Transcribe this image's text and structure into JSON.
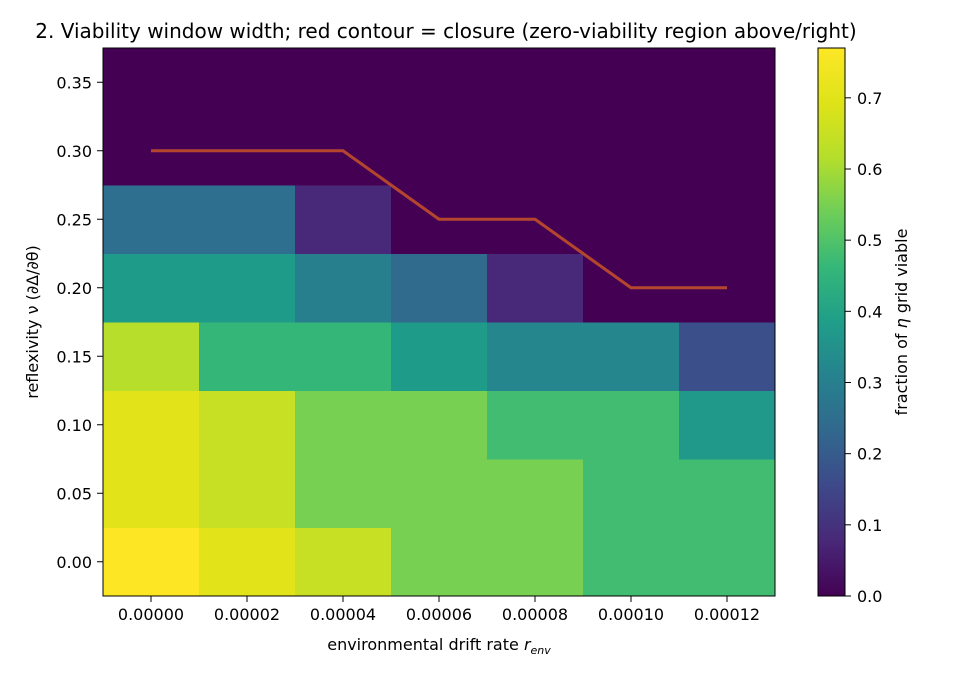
{
  "chart_data": {
    "type": "heatmap",
    "title": "2. Viability window width; red contour = closure (zero-viability region above/right)",
    "xlabel": "environmental drift rate r_env",
    "xlabel_main": "environmental drift rate ",
    "xlabel_var": "r",
    "xlabel_sub": "env",
    "ylabel": "reflexivity ν  (∂Δ/∂θ)",
    "colorbar_label": "fraction of η grid viable",
    "colorbar_label_pre": "fraction of ",
    "colorbar_label_var": "η",
    "colorbar_label_post": " grid viable",
    "colormap": "viridis",
    "vmin": 0.0,
    "vmax": 0.77,
    "x": [
      0.0,
      2e-05,
      4e-05,
      6e-05,
      8e-05,
      0.0001,
      0.00012
    ],
    "y": [
      0.0,
      0.05,
      0.1,
      0.15,
      0.2,
      0.25,
      0.3,
      0.35
    ],
    "xlim": [
      -1e-05,
      0.00013
    ],
    "ylim": [
      -0.025,
      0.375
    ],
    "x_ticks": [
      "0.00000",
      "0.00002",
      "0.00004",
      "0.00006",
      "0.00008",
      "0.00010",
      "0.00012"
    ],
    "y_ticks": [
      "0.00",
      "0.05",
      "0.10",
      "0.15",
      "0.20",
      "0.25",
      "0.30",
      "0.35"
    ],
    "colorbar_ticks": [
      "0.0",
      "0.1",
      "0.2",
      "0.3",
      "0.4",
      "0.5",
      "0.6",
      "0.7"
    ],
    "colorbar_tick_values": [
      0.0,
      0.1,
      0.2,
      0.3,
      0.4,
      0.5,
      0.6,
      0.7
    ],
    "values": [
      [
        0.77,
        0.7,
        0.65,
        0.55,
        0.55,
        0.48,
        0.48
      ],
      [
        0.7,
        0.65,
        0.55,
        0.55,
        0.55,
        0.48,
        0.48
      ],
      [
        0.7,
        0.65,
        0.55,
        0.55,
        0.48,
        0.48,
        0.37
      ],
      [
        0.62,
        0.46,
        0.46,
        0.38,
        0.32,
        0.32,
        0.17
      ],
      [
        0.38,
        0.38,
        0.3,
        0.24,
        0.08,
        0.0,
        0.0
      ],
      [
        0.25,
        0.25,
        0.08,
        0.0,
        0.0,
        0.0,
        0.0
      ],
      [
        0.0,
        0.0,
        0.0,
        0.0,
        0.0,
        0.0,
        0.0
      ],
      [
        0.0,
        0.0,
        0.0,
        0.0,
        0.0,
        0.0,
        0.0
      ]
    ],
    "contour": {
      "color": "#b5462e",
      "x": [
        0.0,
        2e-05,
        4e-05,
        6e-05,
        8e-05,
        0.0001,
        0.00012
      ],
      "y": [
        0.3,
        0.3,
        0.3,
        0.25,
        0.25,
        0.2,
        0.2
      ]
    }
  }
}
